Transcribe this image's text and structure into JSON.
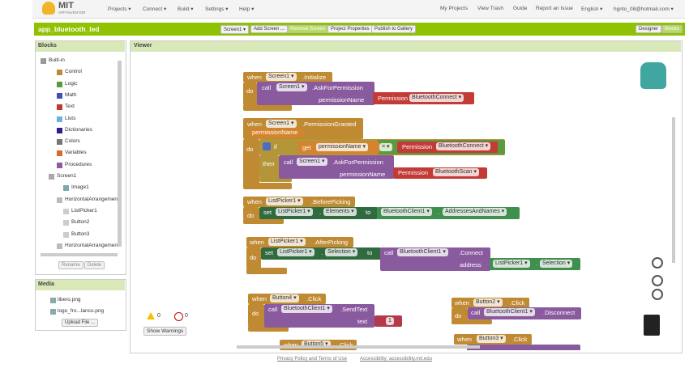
{
  "top_bar": {
    "logo": "MIT",
    "logo_sub": "APP INVENTOR",
    "menus": [
      "Projects ▾",
      "Connect ▾",
      "Build ▾",
      "Settings ▾",
      "Help ▾"
    ],
    "links": [
      "My Projects",
      "View Trash",
      "Guide",
      "Report an Issue",
      "English ▾",
      "hgnto_08@hotmail.com ▾"
    ]
  },
  "project_bar": {
    "name": "app_bluetooth_led",
    "buttons": [
      "Screen1 ▾",
      "Add Screen ...",
      "Remove Screen",
      "Project Properties",
      "Publish to Gallery"
    ],
    "views": [
      "Designer",
      "Blocks"
    ]
  },
  "blocks_panel": {
    "title": "Blocks",
    "tree": [
      "Built-in",
      "Control",
      "Logic",
      "Math",
      "Text",
      "Lists",
      "Dictionaries",
      "Colors",
      "Variables",
      "Procedures",
      "Screen1",
      "Image1",
      "HorizontalArrangemen",
      "ListPicker1",
      "Button2",
      "Button3",
      "HorizontalArrangemen"
    ],
    "buttons": [
      "Rename",
      "Delete"
    ]
  },
  "media_panel": {
    "title": "Media",
    "files": [
      "libero.png",
      "logo_fro...lanco.png"
    ],
    "button": "Upload File ..."
  },
  "viewer": {
    "title": "Viewer",
    "warnings": [
      0,
      0
    ],
    "warnings_button": "Show Warnings",
    "blocks": [
      [
        "when",
        "Screen1 ▾",
        ".Initialize",
        "do",
        "call",
        "Screen1 ▾",
        ".AskForPermission",
        "permissionName",
        "Permission",
        "BluetoothConnect ▾"
      ],
      [
        "when",
        "Screen1 ▾",
        ".PermissionGranted",
        "permissionName",
        "do",
        "if",
        "get",
        "permissionName ▾",
        "= ▾",
        "Permission",
        "BluetoothConnect ▾",
        "then",
        "call",
        "Screen1 ▾",
        ".AskForPermission",
        "permissionName",
        "Permission",
        "BluetoothScan ▾"
      ],
      [
        "when",
        "ListPicker1 ▾",
        ".BeforePicking",
        "do",
        "set",
        "ListPicker1 ▾",
        ".",
        "Elements ▾",
        "to",
        "BluetoothClient1 ▾",
        ".",
        "AddressesAndNames ▾"
      ],
      [
        "when",
        "ListPicker1 ▾",
        ".AfterPicking",
        "do",
        "set",
        "ListPicker1 ▾",
        ".",
        "Selection ▾",
        "to",
        "call",
        "BluetoothClient1 ▾",
        ".Connect",
        "address",
        "ListPicker1 ▾",
        ".",
        "Selection ▾"
      ],
      [
        "when",
        "Button4 ▾",
        ".Click",
        "do",
        "call",
        "BluetoothClient1 ▾",
        ".SendText",
        "text",
        "1"
      ],
      [
        "when",
        "Button2 ▾",
        ".Click",
        "do",
        "call",
        "BluetoothClient1 ▾",
        ".Disconnect"
      ],
      [
        "when",
        "Button5 ▾",
        ".Click"
      ],
      [
        "when",
        "Button3 ▾",
        ".Click"
      ]
    ]
  },
  "footer": {
    "links": [
      "Privacy Policy and Terms of Use",
      "Accessibility: accessibility.mit.edu"
    ]
  }
}
